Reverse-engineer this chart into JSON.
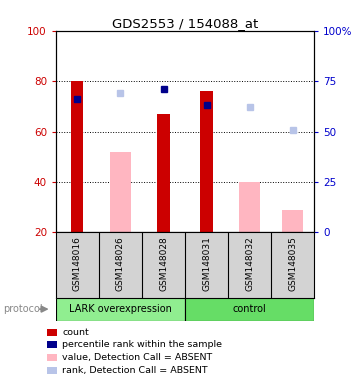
{
  "title": "GDS2553 / 154088_at",
  "samples": [
    "GSM148016",
    "GSM148026",
    "GSM148028",
    "GSM148031",
    "GSM148032",
    "GSM148035"
  ],
  "count_values": [
    80,
    null,
    67,
    76,
    null,
    null
  ],
  "rank_values": [
    66,
    null,
    71,
    63,
    null,
    null
  ],
  "absent_value_bars": [
    null,
    52,
    null,
    null,
    40,
    29
  ],
  "absent_rank_dots": [
    null,
    69,
    null,
    null,
    62,
    51
  ],
  "ylim_left": [
    20,
    100
  ],
  "left_ticks": [
    20,
    40,
    60,
    80,
    100
  ],
  "right_ticks": [
    0,
    25,
    50,
    75,
    100
  ],
  "right_tick_labels": [
    "0",
    "25",
    "50",
    "75",
    "100%"
  ],
  "left_color": "#CC0000",
  "right_color": "#0000CC",
  "count_color": "#CC0000",
  "rank_color": "#00008B",
  "absent_value_color": "#FFB6C1",
  "absent_rank_color": "#B8C4E8",
  "label_area_color": "#D3D3D3",
  "group_label_1": "LARK overexpression",
  "group_label_2": "control",
  "group_color_1": "#90EE90",
  "group_color_2": "#66DD66",
  "protocol_label": "protocol",
  "legend_items": [
    "count",
    "percentile rank within the sample",
    "value, Detection Call = ABSENT",
    "rank, Detection Call = ABSENT"
  ],
  "legend_colors": [
    "#CC0000",
    "#00008B",
    "#FFB6C1",
    "#B8C4E8"
  ]
}
